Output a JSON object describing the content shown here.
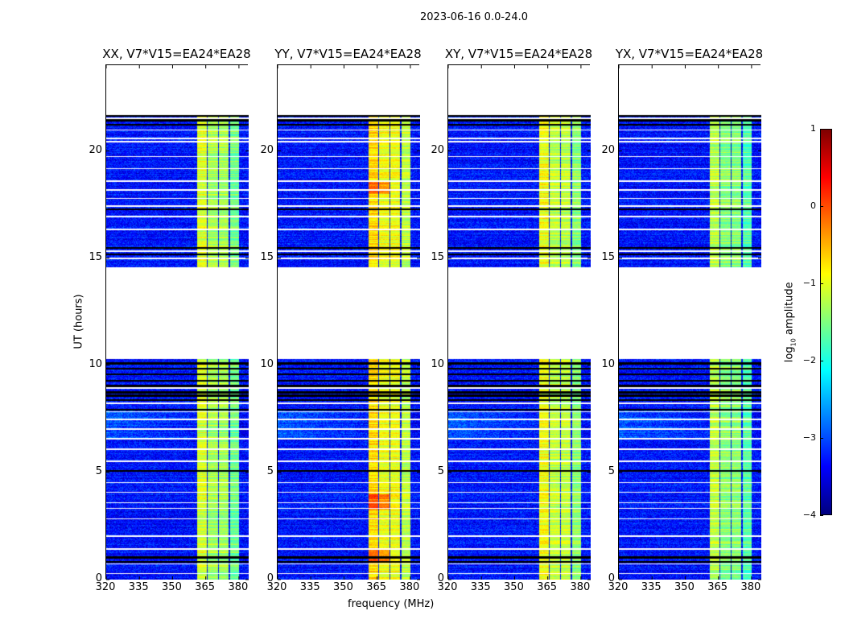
{
  "suptitle": "2023-06-16 0.0-24.0",
  "xlabel": "frequency (MHz)",
  "ylabel": "UT (hours)",
  "colorbar": {
    "label_main": "log",
    "label_sub": "10",
    "label_rest": " amplitude",
    "ticks": [
      "1",
      "0",
      "−1",
      "−2",
      "−3",
      "−4"
    ],
    "tick_values": [
      1,
      0,
      -1,
      -2,
      -3,
      -4
    ],
    "range": [
      -4,
      1
    ],
    "colormap": "jet"
  },
  "chart_data": {
    "type": "heatmap",
    "title": "2023-06-16 0.0-24.0",
    "xlabel": "frequency (MHz)",
    "ylabel": "UT (hours)",
    "xlim": [
      320,
      384.4
    ],
    "ylim": [
      0,
      24
    ],
    "xticks": [
      "320",
      "335",
      "350",
      "365",
      "380"
    ],
    "xtick_values": [
      320,
      335,
      350,
      365,
      380
    ],
    "yticks": [
      "0",
      "5",
      "10",
      "15",
      "20"
    ],
    "ytick_values": [
      0,
      5,
      10,
      15,
      20
    ],
    "value_label": "log10 amplitude",
    "value_range": [
      -4,
      1
    ],
    "valid_time_ranges": [
      [
        0,
        10.3
      ],
      [
        14.6,
        21.7
      ]
    ],
    "flagged_times_white": [
      0.3,
      0.75,
      1.45,
      2.05,
      2.85,
      3.35,
      3.6,
      4.1,
      4.55,
      5.55,
      6.1,
      6.6,
      7.05,
      7.5,
      7.85,
      8.25,
      8.95,
      15.0,
      15.35,
      16.35,
      16.95,
      17.45,
      17.8,
      18.2,
      18.6,
      19.2,
      19.75,
      20.45,
      20.6,
      21.0,
      21.55
    ],
    "zero_times_black": [
      0.85,
      1.05,
      5.1,
      7.95,
      8.4,
      8.6,
      8.75,
      9.05,
      9.3,
      9.6,
      9.85,
      10.1,
      15.2,
      15.5,
      17.3,
      21.25,
      21.45,
      21.65
    ],
    "signal_channels_mhz": [
      [
        360.8,
        365.3
      ],
      [
        365.8,
        370.4
      ],
      [
        370.9,
        375.3
      ],
      [
        375.8,
        380.0
      ]
    ],
    "background_level": -3.3,
    "panels": [
      {
        "title": "XX, V7*V15=EA24*EA28",
        "signal_level": -1.3
      },
      {
        "title": "YY, V7*V15=EA24*EA28",
        "signal_level": -0.95
      },
      {
        "title": "XY, V7*V15=EA24*EA28",
        "signal_level": -1.2
      },
      {
        "title": "YX, V7*V15=EA24*EA28",
        "signal_level": -1.45
      }
    ]
  }
}
